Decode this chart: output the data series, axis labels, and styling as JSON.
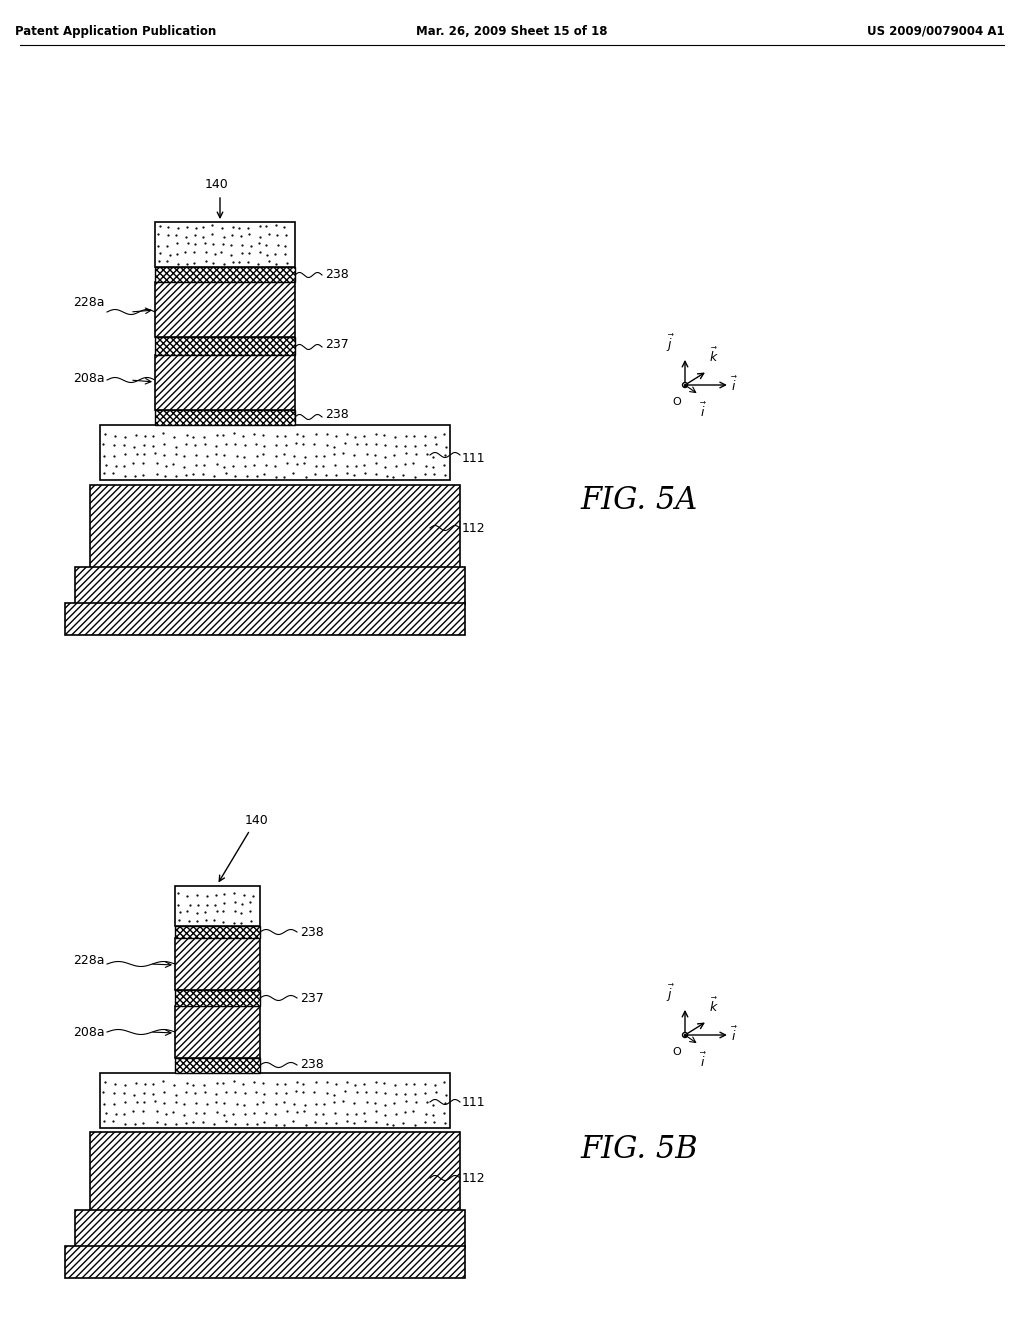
{
  "header_left": "Patent Application Publication",
  "header_mid": "Mar. 26, 2009 Sheet 15 of 18",
  "header_right": "US 2009/0079004 A1",
  "fig5a_label": "FIG. 5A",
  "fig5b_label": "FIG. 5B",
  "bg_color": "#ffffff",
  "line_color": "#000000",
  "hatch_color": "#000000",
  "fig5a": {
    "label_140": "140",
    "label_228a": "228a",
    "label_208a": "208a",
    "label_238a": "238",
    "label_237": "237",
    "label_238b": "238",
    "label_111": "111",
    "label_112": "112"
  },
  "fig5b": {
    "label_140": "140",
    "label_228a": "228a",
    "label_208a": "208a",
    "label_238a": "238",
    "label_237": "237",
    "label_238b": "238",
    "label_111": "111",
    "label_112": "112"
  }
}
